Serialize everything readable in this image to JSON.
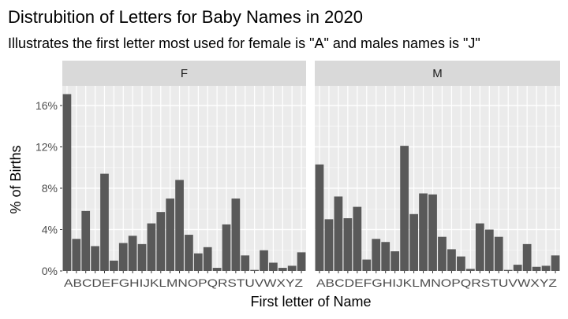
{
  "chart_data": {
    "type": "bar",
    "title": "Distrubition of Letters for Baby Names in 2020",
    "subtitle": "Illustrates the first letter most used for female is \"A\" and males names is \"J\"",
    "xlabel": "First letter of Name",
    "ylabel": "% of Births",
    "ylim": [
      0,
      17.9
    ],
    "yticks": [
      0,
      4,
      8,
      12,
      16
    ],
    "ytick_labels": [
      "0%",
      "4%",
      "8%",
      "12%",
      "16%"
    ],
    "categories": [
      "A",
      "B",
      "C",
      "D",
      "E",
      "F",
      "G",
      "H",
      "I",
      "J",
      "K",
      "L",
      "M",
      "N",
      "O",
      "P",
      "Q",
      "R",
      "S",
      "T",
      "U",
      "V",
      "W",
      "X",
      "Y",
      "Z"
    ],
    "x_tick_labels": "ABCDEFGHIJKLMNOPQRSTUVWXYZ",
    "bar_color": "#595959",
    "panel_background": "#ebebeb",
    "strip_background": "#d9d9d9",
    "grid": true,
    "facets": [
      {
        "label": "F",
        "values": [
          17.1,
          3.1,
          5.8,
          2.4,
          9.4,
          1.0,
          2.7,
          3.4,
          2.6,
          4.6,
          5.7,
          7.0,
          8.8,
          3.5,
          1.7,
          2.3,
          0.3,
          4.5,
          7.0,
          1.5,
          0.1,
          2.0,
          0.8,
          0.3,
          0.5,
          1.8
        ]
      },
      {
        "label": "M",
        "values": [
          10.3,
          5.0,
          7.2,
          5.1,
          6.2,
          1.1,
          3.1,
          2.8,
          1.9,
          12.1,
          5.5,
          7.5,
          7.4,
          3.3,
          2.1,
          1.4,
          0.2,
          4.6,
          4.0,
          3.3,
          0.1,
          0.6,
          2.6,
          0.4,
          0.5,
          1.5
        ]
      }
    ]
  }
}
